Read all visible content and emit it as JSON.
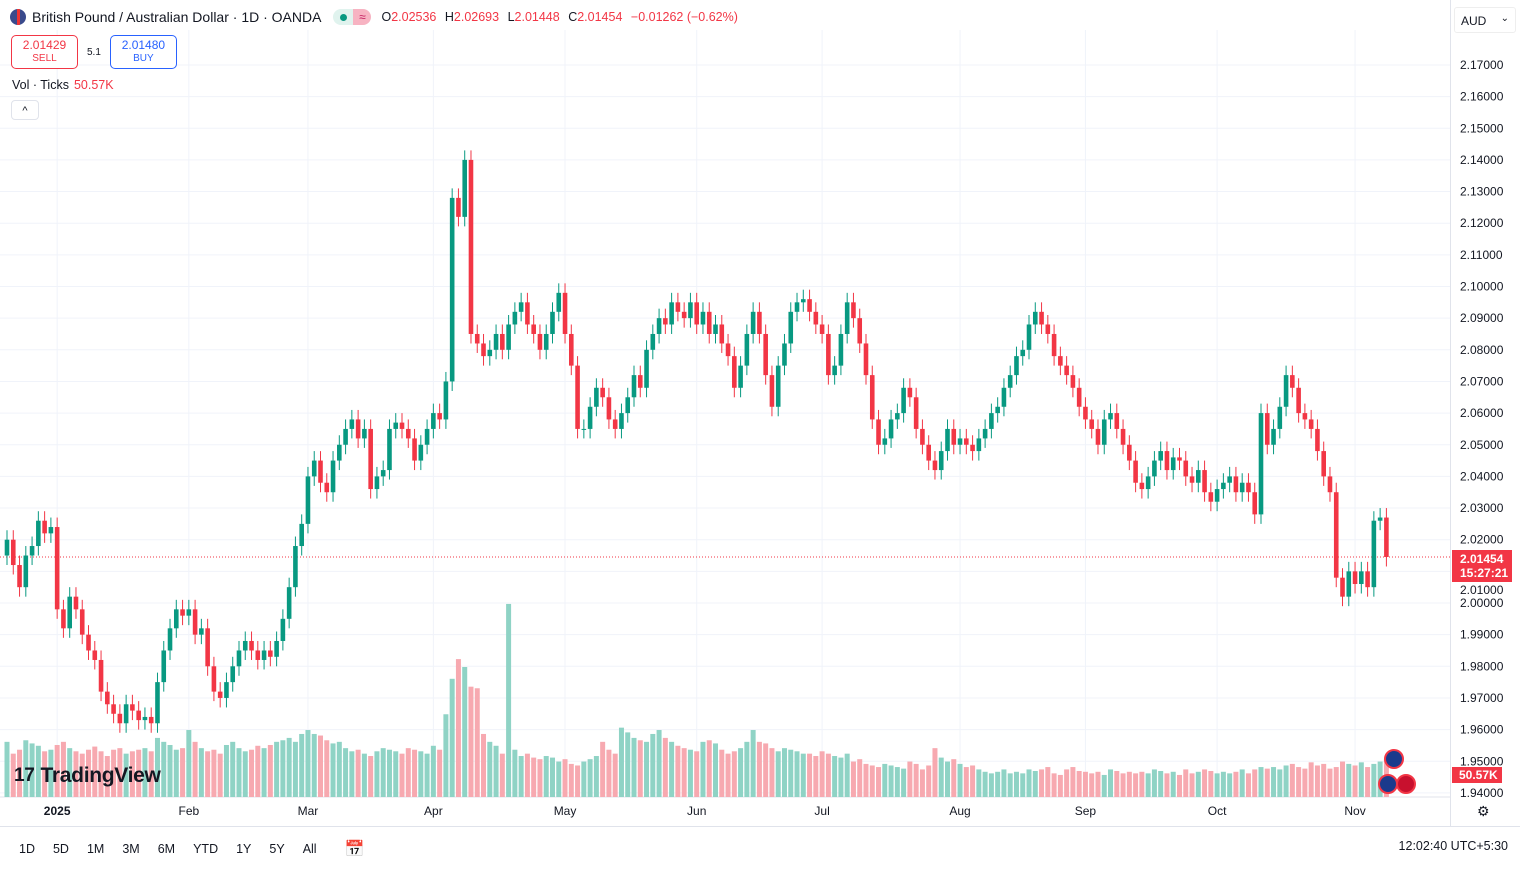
{
  "header": {
    "title": "British Pound / Australian Dollar · 1D · OANDA",
    "o_label": "O",
    "o": "2.02536",
    "h_label": "H",
    "h": "2.02693",
    "l_label": "L",
    "l": "2.01448",
    "c_label": "C",
    "c": "2.01454",
    "change": "−0.01262 (−0.62%)",
    "wave": "≈"
  },
  "trade": {
    "sell_price": "2.01429",
    "sell_label": "SELL",
    "spread": "5.1",
    "buy_price": "2.01480",
    "buy_label": "BUY"
  },
  "volume_legend": {
    "label": "Vol · Ticks",
    "value": "50.57K"
  },
  "collapse": "^",
  "currency": "AUD",
  "currency_chev": "⌄",
  "last_price": "2.01454",
  "countdown": "15:27:21",
  "last_volume": "50.57K",
  "logo": "TradingView",
  "logo_mark": "17",
  "ranges": [
    "1D",
    "5D",
    "1M",
    "3M",
    "6M",
    "YTD",
    "1Y",
    "5Y",
    "All"
  ],
  "clock": "12:02:40 UTC+5:30",
  "colors": {
    "up": "#089981",
    "down": "#f23645",
    "up_vol": "#8fd3c5",
    "down_vol": "#f7a9b0",
    "grid": "#f0f3fa"
  },
  "chart_data": {
    "type": "candlestick",
    "symbol": "GBPAUD",
    "interval": "1D",
    "ylim": [
      1.94,
      2.18
    ],
    "y_ticks": [
      "2.17000",
      "2.16000",
      "2.15000",
      "2.14000",
      "2.13000",
      "2.12000",
      "2.11000",
      "2.10000",
      "2.09000",
      "2.08000",
      "2.07000",
      "2.06000",
      "2.05000",
      "2.04000",
      "2.03000",
      "2.02000",
      "2.01000",
      "2.00000",
      "1.99000",
      "1.98000",
      "1.97000",
      "1.96000",
      "1.95000",
      "1.94000"
    ],
    "x_labels": [
      {
        "label": "2025",
        "index": 8
      },
      {
        "label": "Feb",
        "index": 29
      },
      {
        "label": "Mar",
        "index": 48
      },
      {
        "label": "Apr",
        "index": 68
      },
      {
        "label": "May",
        "index": 89
      },
      {
        "label": "Jun",
        "index": 110
      },
      {
        "label": "Jul",
        "index": 130
      },
      {
        "label": "Aug",
        "index": 152
      },
      {
        "label": "Sep",
        "index": 172
      },
      {
        "label": "Oct",
        "index": 193
      },
      {
        "label": "Nov",
        "index": 215
      }
    ],
    "first_open": 2.015,
    "closes": [
      2.02,
      2.012,
      2.005,
      2.015,
      2.018,
      2.026,
      2.022,
      2.024,
      1.998,
      1.992,
      2.002,
      1.998,
      1.99,
      1.985,
      1.982,
      1.972,
      1.968,
      1.965,
      1.962,
      1.968,
      1.966,
      1.963,
      1.964,
      1.962,
      1.975,
      1.985,
      1.992,
      1.998,
      1.996,
      1.998,
      1.99,
      1.992,
      1.98,
      1.972,
      1.97,
      1.975,
      1.98,
      1.985,
      1.988,
      1.985,
      1.982,
      1.985,
      1.983,
      1.988,
      1.995,
      2.005,
      2.018,
      2.025,
      2.04,
      2.045,
      2.038,
      2.035,
      2.045,
      2.05,
      2.055,
      2.058,
      2.052,
      2.055,
      2.036,
      2.04,
      2.042,
      2.055,
      2.057,
      2.055,
      2.052,
      2.045,
      2.05,
      2.055,
      2.06,
      2.058,
      2.07,
      2.128,
      2.122,
      2.14,
      2.085,
      2.082,
      2.078,
      2.08,
      2.085,
      2.08,
      2.088,
      2.092,
      2.095,
      2.088,
      2.085,
      2.08,
      2.085,
      2.092,
      2.098,
      2.085,
      2.075,
      2.055,
      2.055,
      2.062,
      2.068,
      2.065,
      2.058,
      2.055,
      2.06,
      2.065,
      2.072,
      2.068,
      2.08,
      2.085,
      2.09,
      2.088,
      2.095,
      2.092,
      2.09,
      2.095,
      2.088,
      2.092,
      2.085,
      2.088,
      2.082,
      2.078,
      2.068,
      2.075,
      2.085,
      2.092,
      2.085,
      2.072,
      2.062,
      2.075,
      2.082,
      2.092,
      2.095,
      2.096,
      2.092,
      2.088,
      2.085,
      2.072,
      2.075,
      2.085,
      2.095,
      2.09,
      2.082,
      2.072,
      2.058,
      2.05,
      2.052,
      2.058,
      2.06,
      2.068,
      2.065,
      2.055,
      2.05,
      2.045,
      2.042,
      2.048,
      2.055,
      2.05,
      2.052,
      2.05,
      2.048,
      2.052,
      2.055,
      2.06,
      2.062,
      2.068,
      2.072,
      2.078,
      2.08,
      2.088,
      2.092,
      2.088,
      2.085,
      2.078,
      2.075,
      2.072,
      2.068,
      2.062,
      2.058,
      2.055,
      2.05,
      2.058,
      2.06,
      2.055,
      2.05,
      2.045,
      2.038,
      2.036,
      2.04,
      2.045,
      2.048,
      2.042,
      2.046,
      2.045,
      2.04,
      2.038,
      2.042,
      2.035,
      2.032,
      2.036,
      2.038,
      2.04,
      2.035,
      2.038,
      2.035,
      2.028,
      2.06,
      2.05,
      2.055,
      2.062,
      2.072,
      2.068,
      2.06,
      2.058,
      2.055,
      2.048,
      2.04,
      2.035,
      2.008,
      2.002,
      2.01,
      2.006,
      2.01,
      2.005,
      2.026,
      2.027,
      2.01454
    ],
    "volumes_k": [
      70,
      55,
      60,
      72,
      68,
      65,
      58,
      60,
      66,
      70,
      62,
      58,
      55,
      60,
      64,
      58,
      52,
      60,
      62,
      55,
      58,
      60,
      62,
      58,
      75,
      70,
      66,
      60,
      62,
      85,
      70,
      62,
      58,
      60,
      55,
      66,
      70,
      62,
      58,
      60,
      65,
      62,
      66,
      70,
      72,
      75,
      70,
      80,
      85,
      80,
      78,
      72,
      68,
      70,
      62,
      58,
      60,
      55,
      52,
      58,
      62,
      60,
      58,
      55,
      62,
      60,
      58,
      55,
      65,
      60,
      105,
      150,
      175,
      165,
      140,
      138,
      80,
      70,
      65,
      55,
      245,
      60,
      52,
      55,
      50,
      48,
      52,
      50,
      45,
      48,
      42,
      40,
      45,
      48,
      52,
      70,
      60,
      55,
      88,
      82,
      75,
      72,
      70,
      80,
      85,
      75,
      70,
      65,
      62,
      60,
      58,
      70,
      72,
      68,
      60,
      55,
      58,
      62,
      70,
      85,
      70,
      68,
      62,
      58,
      62,
      60,
      58,
      55,
      55,
      52,
      58,
      55,
      52,
      50,
      55,
      45,
      48,
      42,
      40,
      38,
      42,
      40,
      38,
      36,
      45,
      42,
      35,
      40,
      62,
      50,
      45,
      48,
      42,
      38,
      40,
      35,
      32,
      30,
      32,
      35,
      30,
      32,
      30,
      35,
      33,
      35,
      38,
      30,
      28,
      35,
      38,
      33,
      32,
      30,
      32,
      28,
      35,
      33,
      30,
      32,
      30,
      32,
      30,
      35,
      33,
      30,
      32,
      28,
      35,
      30,
      32,
      35,
      33,
      30,
      32,
      30,
      32,
      35,
      30,
      35,
      38,
      36,
      38,
      35,
      40,
      42,
      38,
      36,
      44,
      40,
      42,
      36,
      38,
      45,
      42,
      40,
      44,
      38,
      42,
      45,
      48,
      50.57
    ]
  }
}
